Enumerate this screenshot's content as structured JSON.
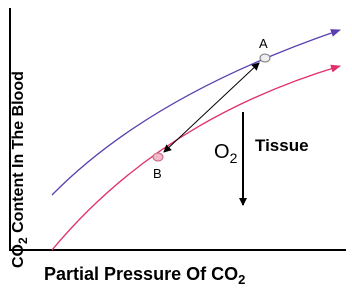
{
  "axes": {
    "y_label": {
      "prefix": "CO",
      "sub": "2",
      "rest": " Content In The Blood"
    },
    "x_label": {
      "prefix": "Partial Pressure Of ",
      "main": "CO",
      "sub": "2"
    }
  },
  "points": [
    {
      "label": "A"
    },
    {
      "label": "B"
    }
  ],
  "arrow_label": {
    "main": "O",
    "sub": "2"
  },
  "tissue_label": "Tissue"
}
